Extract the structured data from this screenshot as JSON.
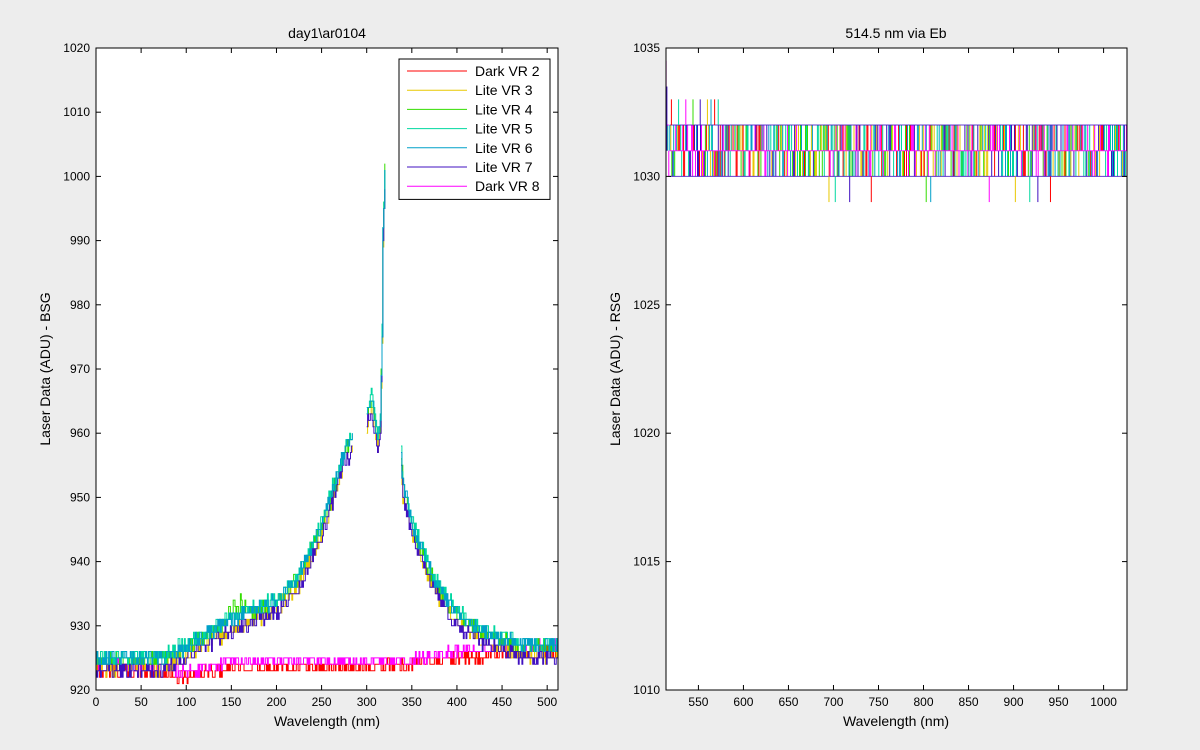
{
  "chart_data": [
    {
      "type": "line",
      "title": "day1\\ar0104",
      "xlabel": "Wavelength (nm)",
      "ylabel": "Laser Data (ADU) - BSG",
      "xlim": [
        0,
        512
      ],
      "ylim": [
        920,
        1020
      ],
      "xticks": [
        0,
        50,
        100,
        150,
        200,
        250,
        300,
        350,
        400,
        450,
        500
      ],
      "yticks": [
        920,
        930,
        940,
        950,
        960,
        970,
        980,
        990,
        1000,
        1010,
        1020
      ],
      "legend_position": "top-right",
      "series": [
        {
          "name": "Dark VR 2",
          "color": "#ff0000",
          "kind": "dark",
          "offset": -0.5,
          "x": [
            0,
            50,
            100,
            150,
            200,
            250,
            300,
            350,
            400,
            450,
            512
          ],
          "y": [
            923.5,
            923.5,
            922.5,
            924,
            924,
            924,
            924,
            924.5,
            925.5,
            926,
            926.5
          ]
        },
        {
          "name": "Lite VR 3",
          "color": "#e8c800",
          "kind": "lite",
          "offset": -0.6,
          "x": [
            0,
            20,
            50,
            75,
            100,
            125,
            150,
            175,
            200,
            225,
            250,
            275,
            282,
            300,
            305,
            308,
            312,
            315,
            317,
            318,
            320,
            340,
            350,
            375,
            400,
            425,
            450,
            475,
            500,
            512
          ],
          "y": [
            924,
            924,
            924,
            924,
            926,
            928,
            930,
            931.5,
            933,
            937,
            945,
            956,
            958,
            962,
            965,
            962,
            958,
            961,
            975,
            990,
            1000,
            951,
            945,
            936,
            931,
            928.5,
            927,
            926,
            926,
            926
          ]
        },
        {
          "name": "Lite VR 4",
          "color": "#33dd00",
          "kind": "lite",
          "offset": 0.6,
          "x": [
            0,
            20,
            50,
            75,
            100,
            125,
            150,
            175,
            200,
            225,
            250,
            275,
            282,
            300,
            305,
            308,
            312,
            315,
            317,
            318,
            320,
            340,
            350,
            375,
            400,
            425,
            450,
            475,
            500,
            512
          ],
          "y": [
            924,
            924,
            924,
            924,
            926,
            928,
            930,
            931.5,
            933,
            937,
            945,
            956,
            958,
            962,
            965,
            962,
            958,
            961,
            975,
            990,
            1000,
            951,
            945,
            936,
            931,
            928.5,
            927,
            926,
            926,
            926
          ]
        },
        {
          "name": "Lite VR 5",
          "color": "#00d8a0",
          "kind": "lite",
          "offset": 1.3,
          "x": [
            0,
            20,
            50,
            75,
            100,
            125,
            150,
            175,
            200,
            225,
            250,
            275,
            282,
            300,
            305,
            308,
            312,
            315,
            317,
            318,
            320,
            340,
            350,
            375,
            400,
            425,
            450,
            475,
            500,
            512
          ],
          "y": [
            924,
            924,
            924,
            924,
            926,
            928,
            930,
            931.5,
            933,
            937,
            945,
            956,
            958,
            962,
            965,
            962,
            958,
            961,
            975,
            990,
            1000,
            951,
            945,
            936,
            931,
            928.5,
            927,
            926,
            926,
            926
          ]
        },
        {
          "name": "Lite VR 6",
          "color": "#00a0c8",
          "kind": "lite",
          "offset": 0.9,
          "x": [
            0,
            20,
            50,
            75,
            100,
            125,
            150,
            175,
            200,
            225,
            250,
            275,
            282,
            300,
            305,
            308,
            312,
            315,
            317,
            318,
            320,
            340,
            350,
            375,
            400,
            425,
            450,
            475,
            500,
            512
          ],
          "y": [
            924,
            924,
            924,
            924,
            926,
            928,
            930,
            931.5,
            933,
            937,
            945,
            956,
            958,
            962,
            965,
            962,
            958,
            961,
            975,
            990,
            1000,
            951,
            945,
            936,
            931,
            928.5,
            927,
            926,
            926,
            926
          ]
        },
        {
          "name": "Lite VR 7",
          "color": "#4010c0",
          "kind": "lite",
          "offset": -0.9,
          "x": [
            0,
            20,
            50,
            75,
            100,
            125,
            150,
            175,
            200,
            225,
            250,
            275,
            282,
            300,
            305,
            308,
            312,
            315,
            317,
            318,
            320,
            340,
            350,
            375,
            400,
            425,
            450,
            475,
            500,
            512
          ],
          "y": [
            924,
            924,
            924,
            924,
            926,
            928,
            930,
            931.5,
            933,
            937,
            945,
            956,
            958,
            962,
            965,
            962,
            958,
            961,
            975,
            990,
            1000,
            951,
            945,
            936,
            931,
            928.5,
            927,
            926,
            926,
            926
          ]
        },
        {
          "name": "Dark VR 8",
          "color": "#ff00ff",
          "kind": "dark",
          "offset": 0.4,
          "x": [
            0,
            50,
            100,
            150,
            200,
            250,
            300,
            350,
            400,
            450,
            512
          ],
          "y": [
            923.5,
            923.5,
            922.5,
            924,
            924,
            924,
            924,
            924.5,
            925.5,
            926,
            926.5
          ]
        }
      ]
    },
    {
      "type": "line",
      "title": "514.5 nm via Eb",
      "xlabel": "Wavelength (nm)",
      "ylabel": "Laser Data (ADU) - RSG",
      "xlim": [
        514,
        1026
      ],
      "ylim": [
        1010,
        1035
      ],
      "xticks": [
        550,
        600,
        650,
        700,
        750,
        800,
        850,
        900,
        950,
        1000
      ],
      "yticks": [
        1010,
        1015,
        1020,
        1025,
        1030,
        1035
      ],
      "series_colors": [
        "#ff0000",
        "#e8c800",
        "#33dd00",
        "#00d8a0",
        "#00a0c8",
        "#4010c0",
        "#ff00ff"
      ],
      "levels": [
        1030,
        1031,
        1032
      ],
      "level_edges": [
        1029.5,
        1030.5,
        1031.5,
        1032.5
      ],
      "start_value": 1034.5,
      "spikes_up": [
        1033,
        1033
      ],
      "spikes_down": [
        1029,
        1029
      ]
    }
  ]
}
